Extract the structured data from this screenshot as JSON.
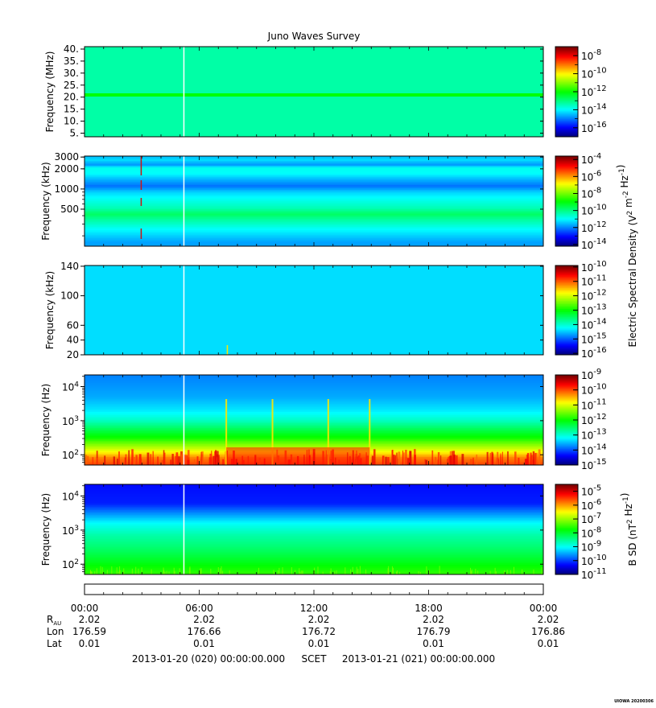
{
  "title": "Juno Waves Survey",
  "credit": "UIOWA 20200306",
  "colors": {
    "jet": [
      "#000080",
      "#0000ff",
      "#0080ff",
      "#00ffff",
      "#00ff80",
      "#00ff00",
      "#80ff00",
      "#ffff00",
      "#ff8000",
      "#ff0000",
      "#800000"
    ]
  },
  "panels": [
    {
      "ylabel": "Frequency (MHz)",
      "scale": "linear",
      "yrange": [
        3.5,
        41
      ],
      "ticks": [
        "40.",
        "35.",
        "30.",
        "25.",
        "20.",
        "15.",
        "10.",
        "5."
      ],
      "tick_values": [
        40,
        35,
        30,
        25,
        20,
        15,
        10,
        5
      ],
      "colorbar": {
        "exponents": [
          "-8",
          "-10",
          "-12",
          "-14",
          "-16"
        ],
        "range": [
          -17,
          -7
        ]
      }
    },
    {
      "ylabel": "Frequency (kHz)",
      "scale": "log",
      "yrange": [
        140,
        3100
      ],
      "ticks": [
        "3000",
        "2000",
        "1000",
        "500"
      ],
      "tick_values": [
        3000,
        2000,
        1000,
        500
      ],
      "colorbar": {
        "exponents": [
          "-4",
          "-6",
          "-8",
          "-10",
          "-12",
          "-14"
        ],
        "range": [
          -14.2,
          -3.6
        ]
      }
    },
    {
      "ylabel": "Frequency (kHz)",
      "scale": "linear",
      "yrange": [
        20,
        141
      ],
      "ticks": [
        "140",
        "100",
        "60",
        "40",
        "20"
      ],
      "tick_values": [
        140,
        100,
        60,
        40,
        20
      ],
      "colorbar": {
        "exponents": [
          "-10",
          "-11",
          "-12",
          "-13",
          "-14",
          "-15",
          "-16"
        ],
        "range": [
          -16.1,
          -9.9
        ]
      }
    },
    {
      "ylabel": "Frequency (Hz)",
      "scale": "log",
      "yrange": [
        50,
        22000
      ],
      "ticks_exp": [
        "4",
        "3",
        "2"
      ],
      "tick_values": [
        10000,
        1000,
        100
      ],
      "colorbar": {
        "exponents": [
          "-9",
          "-10",
          "-11",
          "-12",
          "-13",
          "-14",
          "-15"
        ],
        "range": [
          -15,
          -9
        ]
      }
    },
    {
      "ylabel": "Frequency (Hz)",
      "scale": "log",
      "yrange": [
        50,
        22000
      ],
      "ticks_exp": [
        "4",
        "3",
        "2"
      ],
      "tick_values": [
        10000,
        1000,
        100
      ],
      "colorbar": {
        "exponents": [
          "-5",
          "-6",
          "-7",
          "-8",
          "-9",
          "-10",
          "-11"
        ],
        "range": [
          -11,
          -4.5
        ]
      }
    }
  ],
  "side_labels": {
    "electric": {
      "main": "Electric Spectral Density (V",
      "sup1": "2",
      "mid": " m",
      "sup2": "-2",
      "mid2": " Hz",
      "sup3": "-1",
      "end": ")"
    },
    "magnetic": {
      "main": "B SD (nT",
      "sup1": "2",
      "mid": " Hz",
      "sup2": "-1",
      "end": ")"
    }
  },
  "chart_data": [
    {
      "type": "heatmap",
      "title": "Juno Waves Survey",
      "ylabel": "Frequency (MHz)",
      "xlim": [
        "00:00",
        "24:00"
      ],
      "background_log10": -13.3,
      "bands": [
        {
          "freq": 21,
          "log10": -12.0
        },
        {
          "freq": 33.5,
          "log10": -13.6
        },
        {
          "freq": 8.5,
          "log10": -13.6
        }
      ],
      "colorbar_log10": [
        -17,
        -7
      ]
    },
    {
      "type": "heatmap",
      "ylabel": "Frequency (kHz)",
      "xlim": [
        "00:00",
        "24:00"
      ],
      "profile_log10": [
        {
          "freq": 160,
          "log10": -11.8
        },
        {
          "freq": 250,
          "log10": -11.0
        },
        {
          "freq": 350,
          "log10": -10.2
        },
        {
          "freq": 420,
          "log10": -9.7
        },
        {
          "freq": 520,
          "log10": -10.4
        },
        {
          "freq": 700,
          "log10": -10.9
        },
        {
          "freq": 900,
          "log10": -11.4
        },
        {
          "freq": 1100,
          "log10": -12.2
        },
        {
          "freq": 1350,
          "log10": -11.7
        },
        {
          "freq": 1700,
          "log10": -11.0
        },
        {
          "freq": 2050,
          "log10": -10.9
        },
        {
          "freq": 2300,
          "log10": -11.9
        },
        {
          "freq": 2700,
          "log10": -11.3
        },
        {
          "freq": 3100,
          "log10": -11.6
        }
      ],
      "spike_time": "02:56",
      "colorbar_log10": [
        -14.2,
        -3.6
      ]
    },
    {
      "type": "heatmap",
      "ylabel": "Frequency (kHz)",
      "xlim": [
        "00:00",
        "24:00"
      ],
      "background_log10": -14.4,
      "colorbar_log10": [
        -16.1,
        -9.9
      ]
    },
    {
      "type": "heatmap",
      "ylabel": "Frequency (Hz)",
      "xlim": [
        "00:00",
        "24:00"
      ],
      "profile_log10": [
        {
          "freq": 50,
          "log10": -9.9
        },
        {
          "freq": 80,
          "log10": -10.2
        },
        {
          "freq": 120,
          "log10": -10.8
        },
        {
          "freq": 200,
          "log10": -11.4
        },
        {
          "freq": 300,
          "log10": -11.9
        },
        {
          "freq": 500,
          "log10": -12.3
        },
        {
          "freq": 1000,
          "log10": -12.9
        },
        {
          "freq": 2000,
          "log10": -13.3
        },
        {
          "freq": 5000,
          "log10": -13.6
        },
        {
          "freq": 22000,
          "log10": -13.8
        }
      ],
      "bursts": [
        "07:25",
        "09:50",
        "12:45",
        "14:55"
      ],
      "colorbar_log10": [
        -15,
        -9
      ]
    },
    {
      "type": "heatmap",
      "ylabel": "Frequency (Hz)",
      "xlim": [
        "00:00",
        "24:00"
      ],
      "profile_log10": [
        {
          "freq": 50,
          "log10": -7.5
        },
        {
          "freq": 80,
          "log10": -7.7
        },
        {
          "freq": 150,
          "log10": -8.0
        },
        {
          "freq": 300,
          "log10": -8.3
        },
        {
          "freq": 700,
          "log10": -8.6
        },
        {
          "freq": 1500,
          "log10": -9.0
        },
        {
          "freq": 3000,
          "log10": -9.6
        },
        {
          "freq": 6000,
          "log10": -10.2
        },
        {
          "freq": 22000,
          "log10": -10.3
        }
      ],
      "colorbar_log10": [
        -11,
        -4.5
      ]
    }
  ],
  "data_gap_time": "05:10",
  "time_axis": {
    "labels": [
      "00:00",
      "06:00",
      "12:00",
      "18:00",
      "00:00"
    ],
    "rows": [
      {
        "label": "R",
        "sub": "AU",
        "values": [
          "2.02",
          "2.02",
          "2.02",
          "2.02",
          "2.02"
        ]
      },
      {
        "label": "Lon",
        "values": [
          "176.59",
          "176.66",
          "176.72",
          "176.79",
          "176.86"
        ]
      },
      {
        "label": "Lat",
        "values": [
          "0.01",
          "0.01",
          "0.01",
          "0.01",
          "0.01"
        ]
      }
    ],
    "footer_left": "2013-01-20 (020) 00:00:00.000",
    "footer_mid": "SCET",
    "footer_right": "2013-01-21 (021) 00:00:00.000"
  }
}
